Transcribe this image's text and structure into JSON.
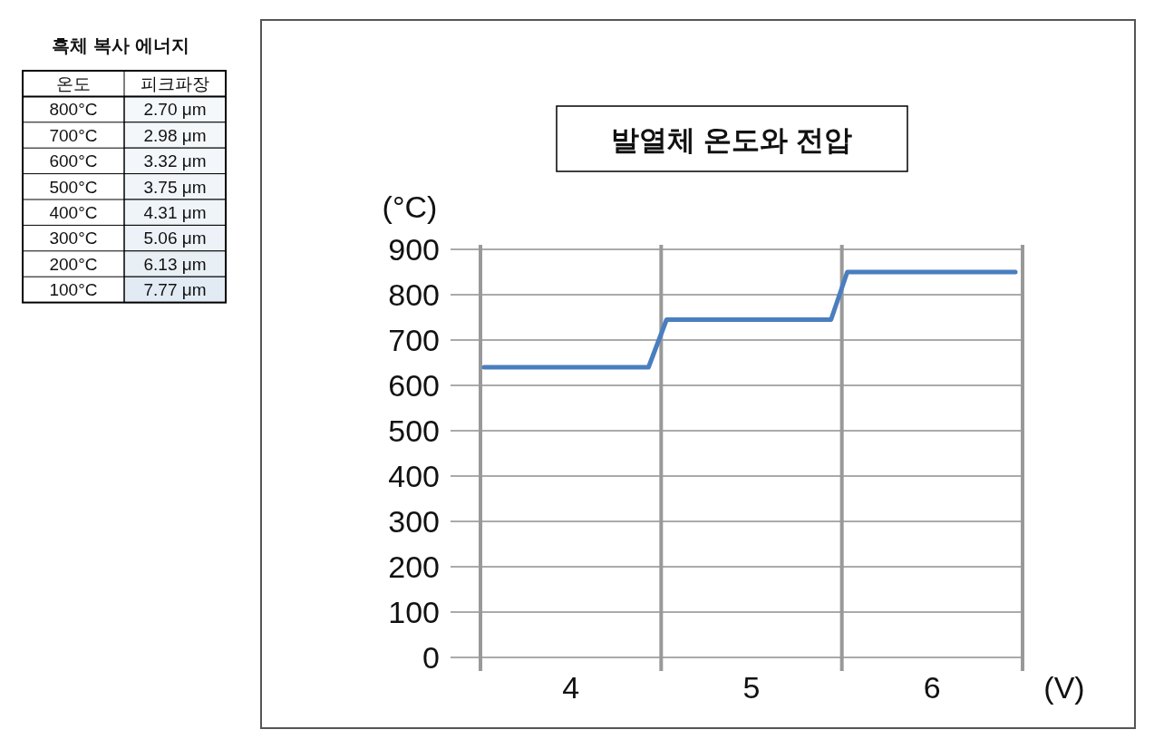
{
  "chart_data": [
    {
      "type": "heatmap",
      "title": "흑체 복사 에너지",
      "ylabel": "온도",
      "categories": [
        "피크파장"
      ],
      "y_categories": [
        "800°C",
        "700°C",
        "600°C",
        "500°C",
        "400°C",
        "300°C",
        "200°C",
        "100°C"
      ],
      "cells": [
        [
          2.7
        ],
        [
          2.98
        ],
        [
          3.32
        ],
        [
          3.75
        ],
        [
          4.31
        ],
        [
          5.06
        ],
        [
          6.13
        ],
        [
          7.77
        ]
      ],
      "cell_labels": [
        [
          "2.70 μm"
        ],
        [
          "2.98 μm"
        ],
        [
          "3.32 μm"
        ],
        [
          "3.75 μm"
        ],
        [
          "4.31 μm"
        ],
        [
          "5.06 μm"
        ],
        [
          "6.13 μm"
        ],
        [
          "7.77 μm"
        ]
      ]
    },
    {
      "type": "line",
      "title": "발열체 온도와 전압",
      "ylabel": "(°C)",
      "xlabel": "(V)",
      "x": [
        3.52,
        4.43,
        4.53,
        5.44,
        5.53,
        6.46
      ],
      "series": [
        {
          "color": "#4a7ebf",
          "values": [
            640,
            640,
            745,
            745,
            850,
            850
          ]
        }
      ],
      "xlim": [
        3.5,
        6.5
      ],
      "xticks": [
        {
          "value": 3.5,
          "label": null
        },
        4,
        {
          "value": 4.5,
          "label": null
        },
        5,
        {
          "value": 5.5,
          "label": null
        },
        6,
        {
          "value": 6.5,
          "label": null
        }
      ],
      "ylim": [
        0,
        900
      ],
      "yticks": [
        0,
        100,
        200,
        300,
        400,
        500,
        600,
        700,
        800,
        900
      ],
      "grid": true,
      "marker": "none",
      "line_style": "solid"
    }
  ]
}
